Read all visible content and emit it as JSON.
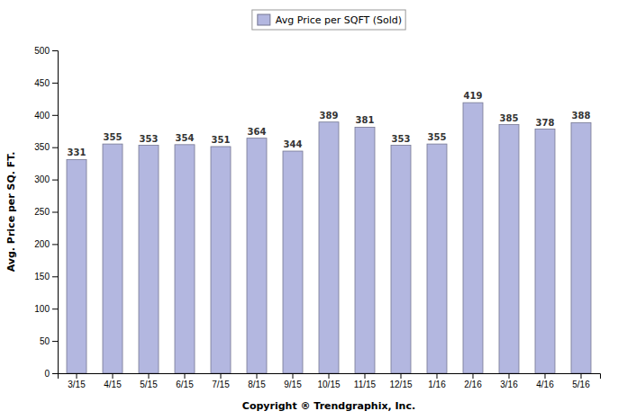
{
  "chart_data": {
    "type": "bar",
    "categories": [
      "3/15",
      "4/15",
      "5/15",
      "6/15",
      "7/15",
      "8/15",
      "9/15",
      "10/15",
      "11/15",
      "12/15",
      "1/16",
      "2/16",
      "3/16",
      "4/16",
      "5/16"
    ],
    "series": [
      {
        "name": "Avg Price per SQFT (Sold)",
        "color": "#b3b7e0",
        "values": [
          331,
          355,
          353,
          354,
          351,
          364,
          344,
          389,
          381,
          353,
          355,
          419,
          385,
          378,
          388
        ]
      }
    ],
    "xlabel": "Copyright ® Trendgraphix, Inc.",
    "ylabel": "Avg. Price per SQ. FT.",
    "ylim": [
      0,
      500
    ],
    "yticks": [
      0,
      50,
      100,
      150,
      200,
      250,
      300,
      350,
      400,
      450,
      500
    ],
    "grid": false,
    "legend": "top",
    "data_labels": true
  }
}
